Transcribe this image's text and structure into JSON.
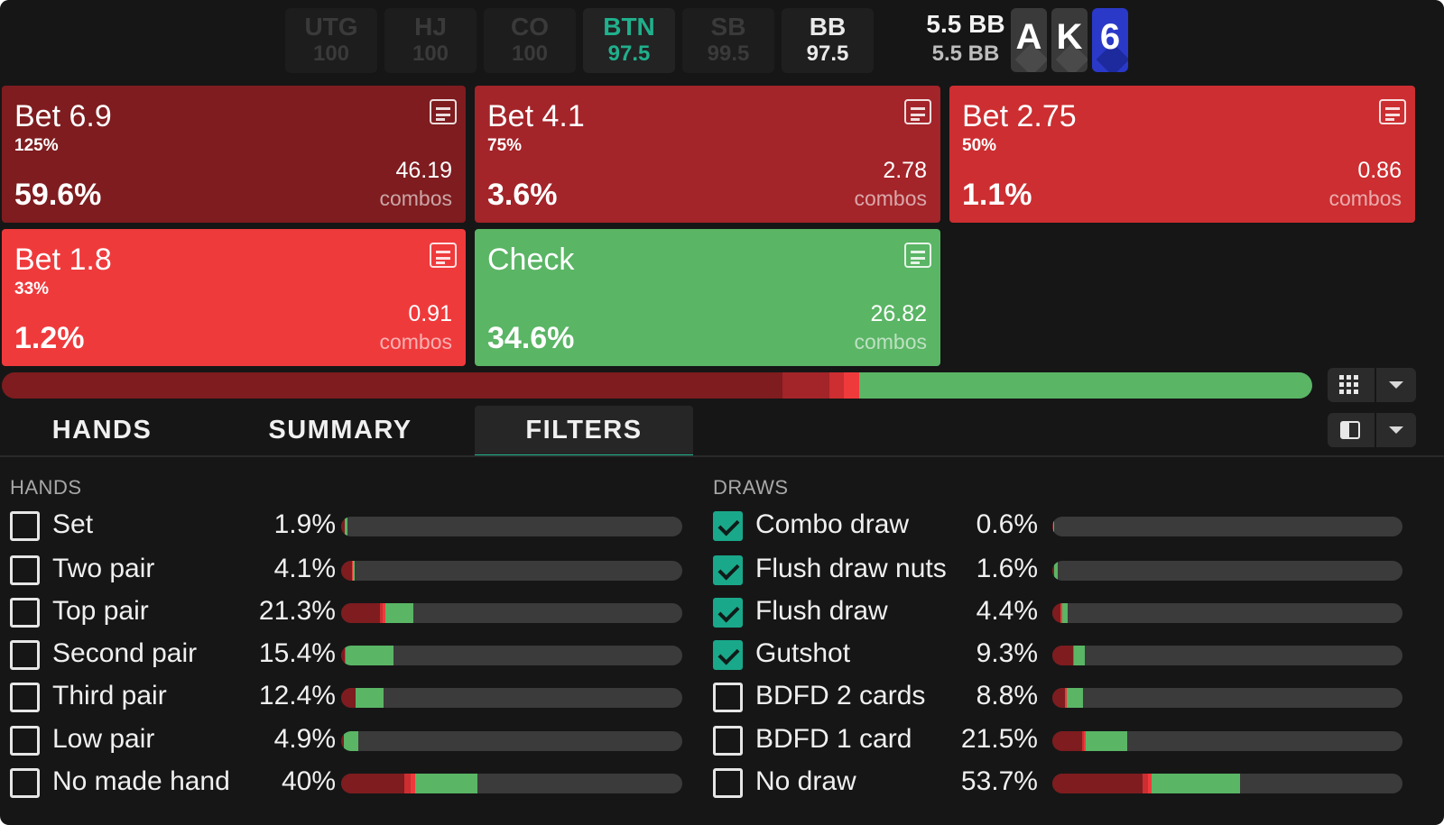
{
  "colors": {
    "bet_6_9": "#7e1c1f",
    "bet_4_1": "#a32429",
    "bet_2_75": "#cc2e31",
    "bet_1_8": "#ef3a3c",
    "check": "#5ab565",
    "accent": "#1fb38d"
  },
  "header": {
    "positions": [
      {
        "name": "UTG",
        "stack": "100",
        "state": "folded"
      },
      {
        "name": "HJ",
        "stack": "100",
        "state": "folded"
      },
      {
        "name": "CO",
        "stack": "100",
        "state": "folded"
      },
      {
        "name": "BTN",
        "stack": "97.5",
        "state": "active"
      },
      {
        "name": "SB",
        "stack": "99.5",
        "state": "folded"
      },
      {
        "name": "BB",
        "stack": "97.5",
        "state": "normal"
      }
    ],
    "pot_line1": "5.5 BB",
    "pot_line2": "5.5 BB",
    "board": [
      {
        "rank": "A",
        "suit": "grey"
      },
      {
        "rank": "K",
        "suit": "grey"
      },
      {
        "rank": "6",
        "suit": "blue"
      }
    ]
  },
  "actions": [
    {
      "name": "Bet 6.9",
      "pct": "125%",
      "freq": "59.6%",
      "combos": "46.19",
      "combos_label": "combos",
      "color_key": "bet_6_9"
    },
    {
      "name": "Bet 4.1",
      "pct": "75%",
      "freq": "3.6%",
      "combos": "2.78",
      "combos_label": "combos",
      "color_key": "bet_4_1"
    },
    {
      "name": "Bet 2.75",
      "pct": "50%",
      "freq": "1.1%",
      "combos": "0.86",
      "combos_label": "combos",
      "color_key": "bet_2_75"
    },
    {
      "name": "Bet 1.8",
      "pct": "33%",
      "freq": "1.2%",
      "combos": "0.91",
      "combos_label": "combos",
      "color_key": "bet_1_8"
    },
    {
      "name": "Check",
      "pct": "",
      "freq": "34.6%",
      "combos": "26.82",
      "combos_label": "combos",
      "color_key": "check"
    }
  ],
  "strategy_bar": [
    59.6,
    3.6,
    1.1,
    1.2,
    34.6
  ],
  "tabs": [
    {
      "label": "HANDS",
      "active": false
    },
    {
      "label": "SUMMARY",
      "active": false
    },
    {
      "label": "FILTERS",
      "active": true
    }
  ],
  "hands": {
    "title": "HANDS",
    "rows": [
      {
        "label": "Set",
        "pct": "1.9%",
        "checked": false,
        "bar": [
          1.0,
          0.0,
          0.0,
          0.1,
          0.8
        ]
      },
      {
        "label": "Two pair",
        "pct": "4.1%",
        "checked": false,
        "bar": [
          3.3,
          0.0,
          0.0,
          0.1,
          0.7
        ]
      },
      {
        "label": "Top pair",
        "pct": "21.3%",
        "checked": false,
        "bar": [
          11.5,
          0.0,
          0.7,
          0.8,
          8.3
        ]
      },
      {
        "label": "Second pair",
        "pct": "15.4%",
        "checked": false,
        "bar": [
          1.0,
          0.0,
          0.0,
          0.3,
          14.1
        ]
      },
      {
        "label": "Third pair",
        "pct": "12.4%",
        "checked": false,
        "bar": [
          4.3,
          0.0,
          0.0,
          0.0,
          8.1
        ]
      },
      {
        "label": "Low pair",
        "pct": "4.9%",
        "checked": false,
        "bar": [
          0.8,
          0.0,
          0.0,
          0.0,
          4.1
        ]
      },
      {
        "label": "No made hand",
        "pct": "40%",
        "checked": false,
        "bar": [
          18.5,
          0.0,
          2.0,
          1.3,
          18.2
        ]
      }
    ]
  },
  "draws": {
    "title": "DRAWS",
    "rows": [
      {
        "label": "Combo draw",
        "pct": "0.6%",
        "checked": true,
        "bar": [
          0.3,
          0.0,
          0.0,
          0.0,
          0.3
        ]
      },
      {
        "label": "Flush draw nuts",
        "pct": "1.6%",
        "checked": true,
        "bar": [
          0.6,
          0.0,
          0.0,
          0.0,
          1.0
        ]
      },
      {
        "label": "Flush draw",
        "pct": "4.4%",
        "checked": true,
        "bar": [
          2.4,
          0.0,
          0.0,
          0.4,
          1.6
        ]
      },
      {
        "label": "Gutshot",
        "pct": "9.3%",
        "checked": true,
        "bar": [
          5.8,
          0.0,
          0.0,
          0.5,
          3.0
        ]
      },
      {
        "label": "BDFD 2 cards",
        "pct": "8.8%",
        "checked": false,
        "bar": [
          3.7,
          0.0,
          0.0,
          0.5,
          4.6
        ]
      },
      {
        "label": "BDFD 1 card",
        "pct": "21.5%",
        "checked": false,
        "bar": [
          8.4,
          0.0,
          0.6,
          0.5,
          12.0
        ]
      },
      {
        "label": "No draw",
        "pct": "53.7%",
        "checked": false,
        "bar": [
          25.9,
          0.0,
          1.5,
          1.0,
          25.3
        ]
      }
    ]
  }
}
